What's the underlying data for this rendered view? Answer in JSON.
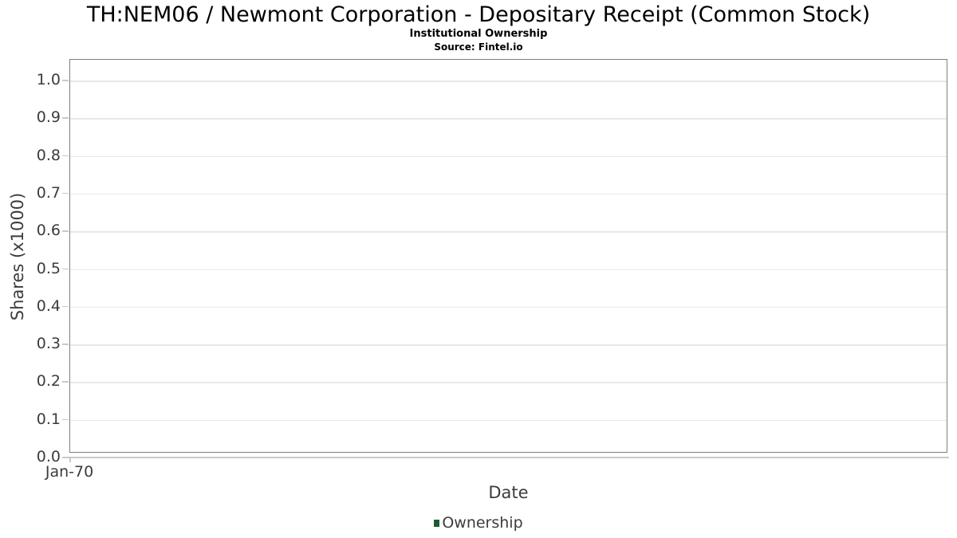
{
  "title": "TH:NEM06 / Newmont Corporation - Depositary Receipt (Common Stock)",
  "subtitle": "Institutional Ownership",
  "source": "Source: Fintel.io",
  "chart_data": {
    "type": "bar",
    "title": "TH:NEM06 / Newmont Corporation - Depositary Receipt (Common Stock)",
    "subtitle": "Institutional Ownership",
    "source_note": "Source: Fintel.io",
    "xlabel": "Date",
    "ylabel": "Shares (x1000)",
    "xticks": [
      "Jan-70"
    ],
    "yticks": [
      "1.0",
      "0.9",
      "0.8",
      "0.7",
      "0.6",
      "0.5",
      "0.4",
      "0.3",
      "0.2",
      "0.1",
      "0.0"
    ],
    "ylim": [
      0.0,
      1.05
    ],
    "grid": "horizontal-only",
    "legend_position": "bottom-center",
    "series": [
      {
        "name": "Ownership",
        "color": "#1e5b31",
        "x": [],
        "values": []
      }
    ]
  },
  "colors": {
    "ownership_series": "#1e5b31",
    "frame_border": "#7f7f7f",
    "gridline": "#e8e8e8",
    "tick": "#c9c9c9",
    "axis_text": "#3c3c3c",
    "title_text": "#000000"
  }
}
